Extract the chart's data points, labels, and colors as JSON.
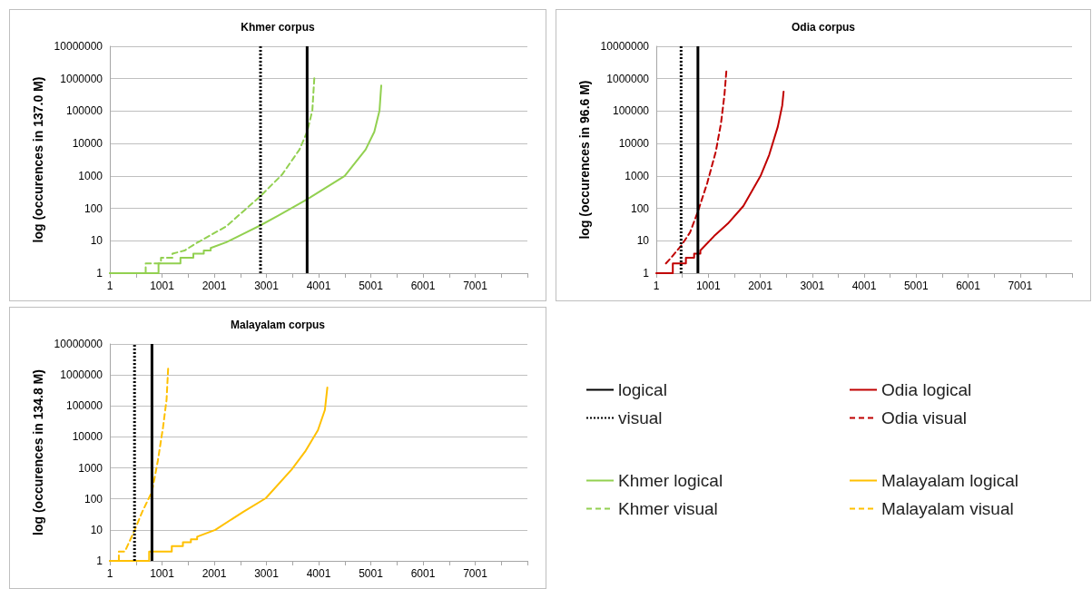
{
  "chart_data": [
    {
      "type": "line",
      "title": "Khmer corpus",
      "ylabel": "log (occurences in 137.0 M)",
      "log": "y",
      "grid": "y",
      "legend": "bottom right",
      "marker": "none",
      "xlim": [
        1,
        8001
      ],
      "xticks": [
        1,
        {
          "value": 501,
          "label": null
        },
        1001,
        {
          "value": 1501,
          "label": null
        },
        2001,
        {
          "value": 2501,
          "label": null
        },
        3001,
        {
          "value": 3501,
          "label": null
        },
        4001,
        {
          "value": 4501,
          "label": null
        },
        5001,
        {
          "value": 5501,
          "label": null
        },
        6001,
        {
          "value": 6501,
          "label": null
        },
        7001,
        {
          "value": 7501,
          "label": null
        },
        {
          "value": 8001,
          "label": null
        }
      ],
      "ylim": [
        1,
        10000000
      ],
      "yticks": [
        1,
        10,
        100,
        1000,
        10000,
        100000,
        1000000,
        10000000
      ],
      "ref_lines": [
        {
          "axis": "x",
          "value": 3781,
          "label": "logical",
          "color": "#000000",
          "line_style": "solid"
        },
        {
          "axis": "x",
          "value": 2888,
          "label": "visual",
          "color": "#000000",
          "line_style": "dotted"
        }
      ],
      "series": [
        {
          "name": "Khmer logical",
          "color": "#92d050",
          "line_style": "solid",
          "x": [
            1,
            934,
            934,
            1354,
            1354,
            1601,
            1601,
            1801,
            1801,
            1934,
            1934,
            2234,
            2888,
            3234,
            3781,
            4501,
            4901,
            5068,
            5168,
            5201
          ],
          "values": [
            1,
            1,
            2,
            2,
            3,
            3,
            4,
            4,
            5,
            5,
            6,
            9,
            30,
            60,
            190,
            1000,
            6500,
            23000,
            105000,
            620000
          ]
        },
        {
          "name": "Khmer visual",
          "color": "#92d050",
          "line_style": "dashed",
          "x": [
            1,
            688,
            688,
            981,
            981,
            1201,
            1201,
            1434,
            1634,
            2234,
            2888,
            3301,
            3634,
            3781,
            3881,
            3921
          ],
          "values": [
            1,
            1,
            2,
            2,
            3,
            3,
            4,
            5,
            8,
            28,
            240,
            1100,
            6500,
            23000,
            105000,
            1200000
          ]
        }
      ]
    },
    {
      "type": "line",
      "title": "Odia corpus",
      "ylabel": "log (occurences in 96.6 M)",
      "log": "y",
      "grid": "y",
      "legend": "bottom right",
      "marker": "none",
      "xlim": [
        1,
        8001
      ],
      "xticks": [
        1,
        {
          "value": 501,
          "label": null
        },
        1001,
        {
          "value": 1501,
          "label": null
        },
        2001,
        {
          "value": 2501,
          "label": null
        },
        3001,
        {
          "value": 3501,
          "label": null
        },
        4001,
        {
          "value": 4501,
          "label": null
        },
        5001,
        {
          "value": 5501,
          "label": null
        },
        6001,
        {
          "value": 6501,
          "label": null
        },
        7001,
        {
          "value": 7501,
          "label": null
        },
        {
          "value": 8001,
          "label": null
        }
      ],
      "ylim": [
        1,
        10000000
      ],
      "yticks": [
        1,
        10,
        100,
        1000,
        10000,
        100000,
        1000000,
        10000000
      ],
      "ref_lines": [
        {
          "axis": "x",
          "value": 802,
          "color": "#000000",
          "line_style": "solid"
        },
        {
          "axis": "x",
          "value": 478,
          "color": "#000000",
          "line_style": "dotted"
        }
      ],
      "series": [
        {
          "name": "Odia logical",
          "color": "#c00000",
          "line_style": "solid",
          "x": [
            1,
            319,
            319,
            571,
            571,
            729,
            729,
            849,
            849,
            1114,
            1379,
            1677,
            2008,
            2174,
            2339,
            2425,
            2451
          ],
          "values": [
            1,
            1,
            2,
            2,
            3,
            3,
            4,
            4,
            5,
            14,
            34,
            118,
            1000,
            4500,
            33000,
            150000,
            400000
          ]
        },
        {
          "name": "Odia visual",
          "color": "#c00000",
          "line_style": "dashed",
          "x": [
            186,
            286,
            478,
            650,
            802,
            981,
            1147,
            1246,
            1312,
            1352
          ],
          "values": [
            2,
            3,
            7,
            18,
            80,
            600,
            5700,
            42000,
            310000,
            1900000
          ]
        }
      ]
    },
    {
      "type": "line",
      "title": "Malayalam corpus",
      "ylabel": "log (occurences in 134.8 M)",
      "log": "y",
      "grid": "y",
      "legend": "bottom right",
      "marker": "none",
      "xlim": [
        1,
        8001
      ],
      "xticks": [
        1,
        {
          "value": 501,
          "label": null
        },
        1001,
        {
          "value": 1501,
          "label": null
        },
        2001,
        {
          "value": 2501,
          "label": null
        },
        3001,
        {
          "value": 3501,
          "label": null
        },
        4001,
        {
          "value": 4501,
          "label": null
        },
        5001,
        {
          "value": 5501,
          "label": null
        },
        6001,
        {
          "value": 6501,
          "label": null
        },
        7001,
        {
          "value": 7501,
          "label": null
        },
        {
          "value": 8001,
          "label": null
        }
      ],
      "ylim": [
        1,
        10000000
      ],
      "yticks": [
        1,
        10,
        100,
        1000,
        10000,
        100000,
        1000000,
        10000000
      ],
      "ref_lines": [
        {
          "axis": "x",
          "value": 808,
          "color": "#000000",
          "line_style": "solid"
        },
        {
          "axis": "x",
          "value": 474,
          "color": "#000000",
          "line_style": "dotted"
        }
      ],
      "series": [
        {
          "name": "Malayalam logical",
          "color": "#ffc000",
          "line_style": "solid",
          "x": [
            1,
            754,
            754,
            1188,
            1188,
            1401,
            1401,
            1554,
            1554,
            1674,
            1674,
            2021,
            2554,
            2988,
            3488,
            3754,
            3988,
            4121,
            4168
          ],
          "values": [
            1,
            1,
            2,
            2,
            3,
            3,
            4,
            4,
            5,
            5,
            6,
            10,
            38,
            105,
            900,
            3600,
            16500,
            74000,
            390000
          ]
        },
        {
          "name": "Malayalam visual",
          "color": "#ffc000",
          "line_style": "dashed",
          "x": [
            1,
            174,
            174,
            288,
            474,
            621,
            808,
            921,
            1021,
            1088,
            1121
          ],
          "values": [
            1,
            1,
            2,
            2,
            9.5,
            38,
            170,
            1700,
            21000,
            160000,
            2000000
          ]
        }
      ]
    }
  ]
}
